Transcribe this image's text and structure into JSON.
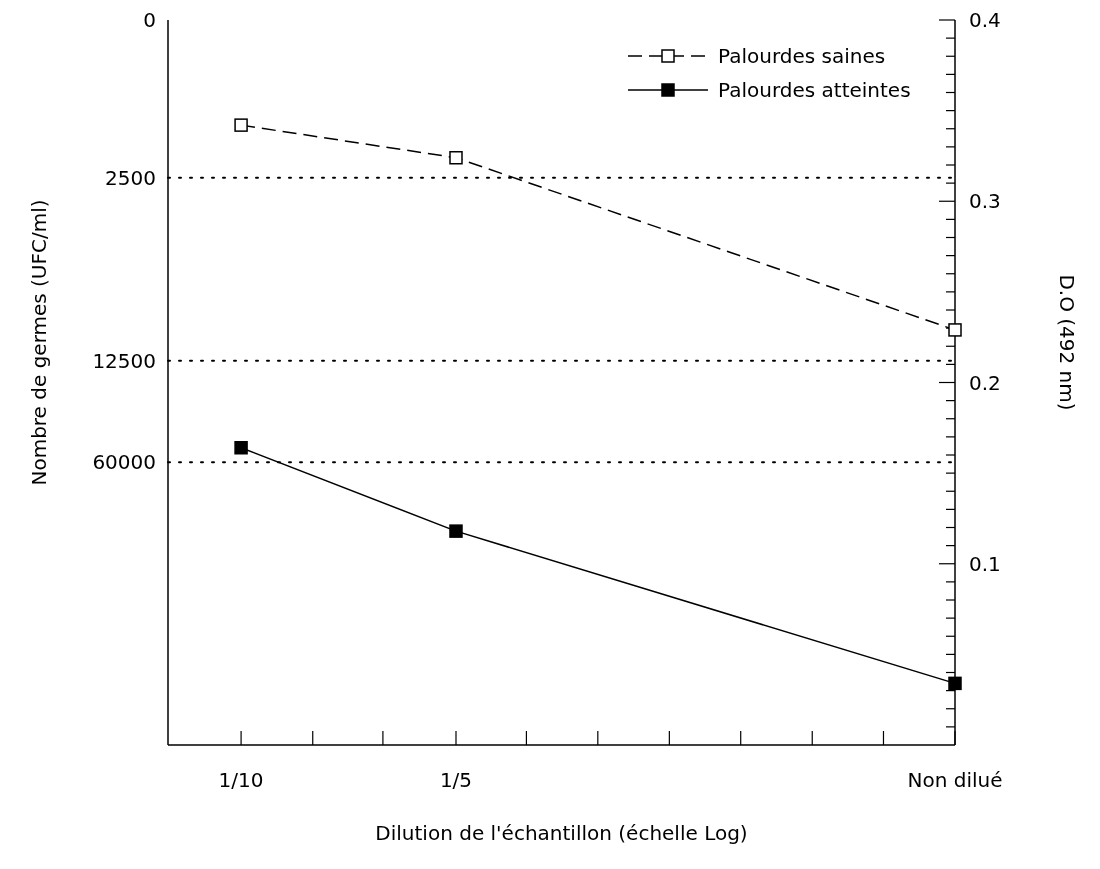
{
  "chart_data": {
    "type": "line",
    "xlabel": "Dilution de l'échantillon (échelle Log)",
    "ylabel": "D.O (492 nm)",
    "annotations": [
      "Nombre de germes (UFC/ml)",
      "0",
      "2500",
      "12500",
      "60000"
    ],
    "x": [
      0.1,
      0.2,
      1
    ],
    "log": "x",
    "xlim": [
      0.079,
      1
    ],
    "xticks": [
      {
        "value": 0.1,
        "label": "1/10"
      },
      {
        "value": 0.126,
        "label": null
      },
      {
        "value": 0.158,
        "label": null
      },
      {
        "value": 0.2,
        "label": "1/5"
      },
      {
        "value": 0.251,
        "label": null
      },
      {
        "value": 0.316,
        "label": null
      },
      {
        "value": 0.398,
        "label": null
      },
      {
        "value": 0.501,
        "label": null
      },
      {
        "value": 0.631,
        "label": null
      },
      {
        "value": 0.794,
        "label": null
      },
      {
        "value": 1,
        "label": "Non dilué"
      }
    ],
    "ylim": [
      0,
      0.4
    ],
    "yticks": [
      {
        "value": 0.01,
        "label": null
      },
      {
        "value": 0.02,
        "label": null
      },
      {
        "value": 0.03,
        "label": null
      },
      {
        "value": 0.04,
        "label": null
      },
      {
        "value": 0.05,
        "label": null
      },
      {
        "value": 0.06,
        "label": null
      },
      {
        "value": 0.07,
        "label": null
      },
      {
        "value": 0.08,
        "label": null
      },
      {
        "value": 0.09,
        "label": null
      },
      {
        "value": 0.1,
        "label": "0.1"
      },
      {
        "value": 0.11,
        "label": null
      },
      {
        "value": 0.12,
        "label": null
      },
      {
        "value": 0.13,
        "label": null
      },
      {
        "value": 0.14,
        "label": null
      },
      {
        "value": 0.15,
        "label": null
      },
      {
        "value": 0.16,
        "label": null
      },
      {
        "value": 0.17,
        "label": null
      },
      {
        "value": 0.18,
        "label": null
      },
      {
        "value": 0.19,
        "label": null
      },
      {
        "value": 0.2,
        "label": "0.2"
      },
      {
        "value": 0.21,
        "label": null
      },
      {
        "value": 0.22,
        "label": null
      },
      {
        "value": 0.23,
        "label": null
      },
      {
        "value": 0.24,
        "label": null
      },
      {
        "value": 0.25,
        "label": null
      },
      {
        "value": 0.26,
        "label": null
      },
      {
        "value": 0.27,
        "label": null
      },
      {
        "value": 0.28,
        "label": null
      },
      {
        "value": 0.29,
        "label": null
      },
      {
        "value": 0.3,
        "label": "0.3"
      },
      {
        "value": 0.31,
        "label": null
      },
      {
        "value": 0.32,
        "label": null
      },
      {
        "value": 0.33,
        "label": null
      },
      {
        "value": 0.34,
        "label": null
      },
      {
        "value": 0.35,
        "label": null
      },
      {
        "value": 0.36,
        "label": null
      },
      {
        "value": 0.37,
        "label": null
      },
      {
        "value": 0.38,
        "label": null
      },
      {
        "value": 0.39,
        "label": null
      },
      {
        "value": 0.4,
        "label": "0.4"
      }
    ],
    "ref_lines": [
      {
        "axis": "y",
        "value": 0.313,
        "line_style": "dotted",
        "color": "#000000"
      },
      {
        "axis": "y",
        "value": 0.212,
        "line_style": "dotted",
        "color": "#000000"
      },
      {
        "axis": "y",
        "value": 0.156,
        "line_style": "dotted",
        "color": "#000000"
      }
    ],
    "series": [
      {
        "name": "Palourdes saines",
        "color": "#000000",
        "line_style": "dashed",
        "values": [
          0.342,
          0.324,
          0.229
        ]
      },
      {
        "name": "Palourdes atteintes",
        "color": "#000000",
        "line_style": "solid",
        "values": [
          0.164,
          0.118,
          0.034
        ]
      }
    ],
    "marker": "square",
    "legend": "top right",
    "grid": false
  }
}
